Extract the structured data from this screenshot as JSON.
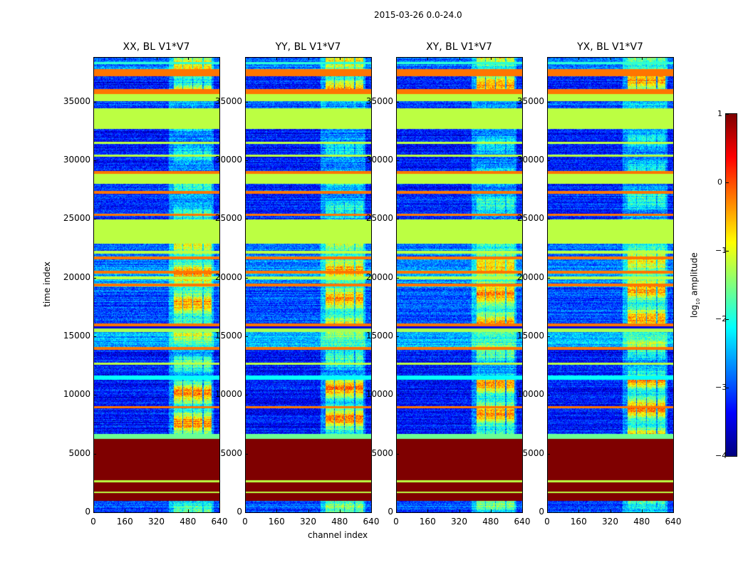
{
  "chart_data": {
    "type": "heatmap",
    "suptitle": "2015-03-26 0.0-24.0",
    "xlabel": "channel index",
    "ylabel": "time index",
    "xlim": [
      0,
      640
    ],
    "ylim": [
      0,
      38800
    ],
    "xticks": [
      "0",
      "160",
      "320",
      "480",
      "640"
    ],
    "xtick_values": [
      0,
      160,
      320,
      480,
      640
    ],
    "yticks": [
      "0",
      "5000",
      "10000",
      "15000",
      "20000",
      "25000",
      "30000",
      "35000"
    ],
    "ytick_values": [
      0,
      5000,
      10000,
      15000,
      20000,
      25000,
      30000,
      35000
    ],
    "panels": [
      {
        "title": "XX, BL V1*V7",
        "seed": 11
      },
      {
        "title": "YY, BL V1*V7",
        "seed": 23
      },
      {
        "title": "XY, BL V1*V7",
        "seed": 37
      },
      {
        "title": "YX, BL V1*V7",
        "seed": 51
      }
    ],
    "bright_channel_blocks": [
      [
        405,
        450
      ],
      [
        455,
        500
      ],
      [
        505,
        550
      ],
      [
        557,
        597
      ]
    ],
    "bands": [
      {
        "t": [
          0,
          1000
        ],
        "v": -3.0,
        "bright": 1.5
      },
      {
        "t": [
          1000,
          6300
        ],
        "v": 1.0,
        "flat": true
      },
      {
        "t": [
          1650,
          1800
        ],
        "v": -1.2,
        "flat": true
      },
      {
        "t": [
          2600,
          2750
        ],
        "v": -1.2,
        "flat": true
      },
      {
        "t": [
          6300,
          6700
        ],
        "v": -1.6,
        "flat": true
      },
      {
        "t": [
          6700,
          11300
        ],
        "v": -3.3,
        "bright": 3.0
      },
      {
        "t": [
          8900,
          9100
        ],
        "v": -0.2,
        "flat": true
      },
      {
        "t": [
          11300,
          11700
        ],
        "v": -2.1,
        "flat": true
      },
      {
        "t": [
          11700,
          14000
        ],
        "v": -3.3,
        "bright": 1.6
      },
      {
        "t": [
          12600,
          12800
        ],
        "v": -1.2,
        "flat": true
      },
      {
        "t": [
          13900,
          14100
        ],
        "v": -0.2,
        "flat": true
      },
      {
        "t": [
          14100,
          15400
        ],
        "v": -2.5,
        "bright": 1.4
      },
      {
        "t": [
          15400,
          15700
        ],
        "v": -1.3,
        "flat": true
      },
      {
        "t": [
          15900,
          16100
        ],
        "v": -0.2,
        "flat": true
      },
      {
        "t": [
          16100,
          19200
        ],
        "v": -3.0,
        "bright": 2.6
      },
      {
        "t": [
          19200,
          21000
        ],
        "v": -2.6,
        "bright": 2.2
      },
      {
        "t": [
          19300,
          19500
        ],
        "v": -0.2,
        "flat": true
      },
      {
        "t": [
          19900,
          20100
        ],
        "v": -1.2,
        "flat": true
      },
      {
        "t": [
          20400,
          20600
        ],
        "v": -0.2,
        "flat": true
      },
      {
        "t": [
          21000,
          22900
        ],
        "v": -2.8,
        "bright": 2.0
      },
      {
        "t": [
          21600,
          21800
        ],
        "v": -0.2,
        "flat": true
      },
      {
        "t": [
          22100,
          22300
        ],
        "v": -1.2,
        "flat": true
      },
      {
        "t": [
          22900,
          25000
        ],
        "v": -1.2,
        "flat": true
      },
      {
        "t": [
          25000,
          28000
        ],
        "v": -3.2,
        "bright": 1.3
      },
      {
        "t": [
          25300,
          25500
        ],
        "v": -0.2,
        "flat": true
      },
      {
        "t": [
          27200,
          27400
        ],
        "v": -0.2,
        "flat": true
      },
      {
        "t": [
          28000,
          29000
        ],
        "v": -1.2,
        "flat": true
      },
      {
        "t": [
          28900,
          29100
        ],
        "v": -0.2,
        "flat": true
      },
      {
        "t": [
          29100,
          32700
        ],
        "v": -3.3,
        "bright": 1.2
      },
      {
        "t": [
          30300,
          30500
        ],
        "v": -1.2,
        "flat": true
      },
      {
        "t": [
          31400,
          31600
        ],
        "v": -1.2,
        "flat": true
      },
      {
        "t": [
          32700,
          34450
        ],
        "v": -1.2,
        "flat": true
      },
      {
        "t": [
          34450,
          35050
        ],
        "v": -3.0,
        "bright": 0.8
      },
      {
        "t": [
          35050,
          35700
        ],
        "v": -1.2,
        "flat": true
      },
      {
        "t": [
          35700,
          36100
        ],
        "v": -0.2,
        "flat": true
      },
      {
        "t": [
          36100,
          37200
        ],
        "v": -3.3,
        "bright": 2.8
      },
      {
        "t": [
          37200,
          37800
        ],
        "v": -0.2,
        "flat": true
      },
      {
        "t": [
          37800,
          38800
        ],
        "v": -2.8,
        "bright": 2.0
      },
      {
        "t": [
          38200,
          38400
        ],
        "v": -1.9,
        "flat": true
      }
    ],
    "colorbar": {
      "label_prefix": "log",
      "label_sub": "10",
      "label_suffix": " amplitude",
      "range": [
        -4,
        1
      ],
      "ticks": [
        "1",
        "0",
        "−1",
        "−2",
        "−3",
        "−4"
      ],
      "tick_values": [
        1,
        0,
        -1,
        -2,
        -3,
        -4
      ],
      "colormap": "jet"
    }
  }
}
